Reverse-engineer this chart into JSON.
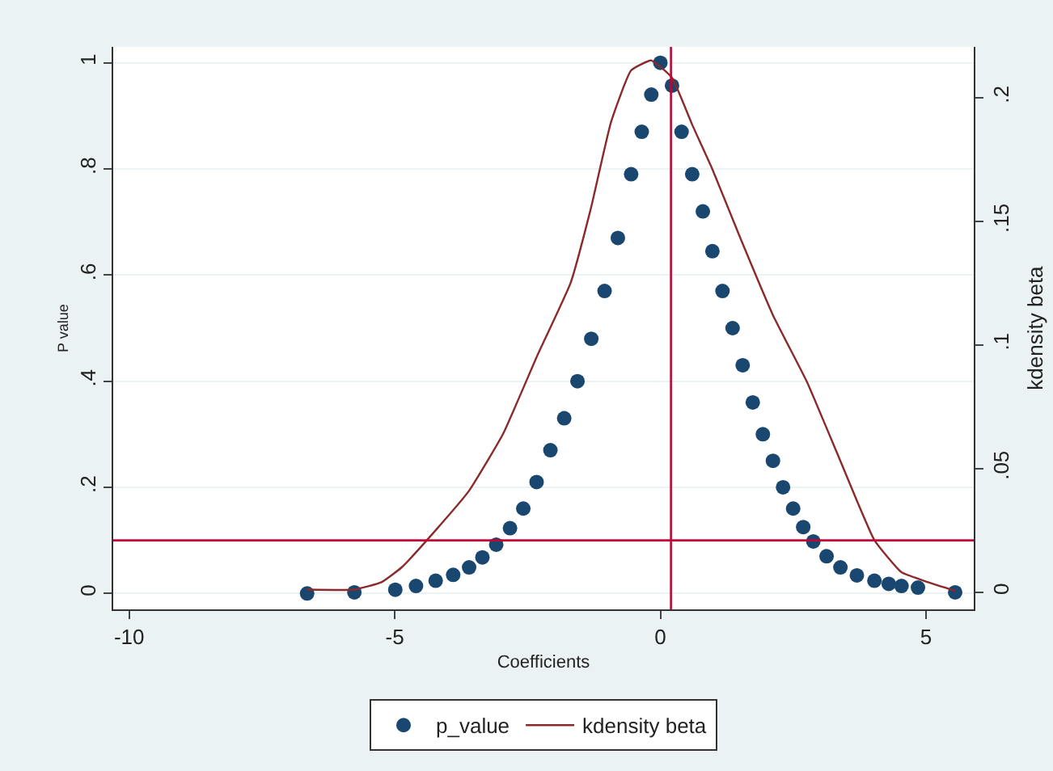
{
  "chart_data": {
    "type": "scatter",
    "xlabel": "Coefficients",
    "ylabel": "P value",
    "y2label": "kdensity beta",
    "xlim": [
      -10.3,
      5.9
    ],
    "xticks": [
      -10,
      -5,
      0,
      5
    ],
    "ylim": [
      -0.03,
      1.03
    ],
    "yticks": [
      0,
      {
        "value": 0.2,
        "label": ".2"
      },
      {
        "value": 0.4,
        "label": ".4"
      },
      {
        "value": 0.6,
        "label": ".6"
      },
      {
        "value": 0.8,
        "label": ".8"
      },
      1
    ],
    "y2lim": [
      -0.007,
      0.2205
    ],
    "y2ticks": [
      0,
      {
        "value": 0.05,
        "label": ".05"
      },
      {
        "value": 0.1,
        "label": ".1"
      },
      {
        "value": 0.15,
        "label": ".15"
      },
      {
        "value": 0.2,
        "label": ".2"
      }
    ],
    "series": [
      {
        "name": "p_value",
        "color": "#1a476f",
        "marker": "circle",
        "x": [
          -6.65,
          -5.76,
          -4.99,
          -4.6,
          -4.23,
          -3.9,
          -3.6,
          -3.35,
          -3.09,
          -2.83,
          -2.58,
          -2.33,
          -2.07,
          -1.81,
          -1.56,
          -1.3,
          -1.05,
          -0.8,
          -0.55,
          -0.35,
          -0.17,
          0,
          0.22,
          0.4,
          0.6,
          0.8,
          0.98,
          1.17,
          1.36,
          1.55,
          1.74,
          1.93,
          2.12,
          2.31,
          2.5,
          2.69,
          2.88,
          3.13,
          3.39,
          3.7,
          4.03,
          4.3,
          4.54,
          4.85,
          5.55
        ],
        "values": [
          0,
          0.002,
          0.007,
          0.014,
          0.024,
          0.035,
          0.049,
          0.068,
          0.092,
          0.123,
          0.16,
          0.21,
          0.27,
          0.33,
          0.4,
          0.48,
          0.57,
          0.67,
          0.79,
          0.87,
          0.94,
          1,
          0.957,
          0.87,
          0.79,
          0.72,
          0.645,
          0.57,
          0.5,
          0.43,
          0.36,
          0.3,
          0.25,
          0.2,
          0.16,
          0.125,
          0.098,
          0.07,
          0.049,
          0.034,
          0.024,
          0.018,
          0.014,
          0.011,
          0.002
        ]
      },
      {
        "name": "kdensity beta",
        "type": "line",
        "axis": "y2",
        "color": "#8b2a2a",
        "line_style": "solid",
        "x": [
          -6.65,
          -5.76,
          -5.25,
          -4.87,
          -4.23,
          -3.6,
          -2.96,
          -2.33,
          -1.69,
          -1.31,
          -0.93,
          -0.55,
          -0.17,
          0.22,
          0.6,
          0.98,
          1.49,
          2.12,
          2.76,
          3.39,
          4.03,
          4.54,
          5.04,
          5.55
        ],
        "values": [
          0.001,
          0.001,
          0.004,
          0.01,
          0.025,
          0.041,
          0.064,
          0.095,
          0.125,
          0.155,
          0.19,
          0.211,
          0.215,
          0.208,
          0.189,
          0.171,
          0.144,
          0.112,
          0.085,
          0.053,
          0.021,
          0.008,
          0.004,
          0.0005
        ]
      }
    ],
    "ref_lines": [
      {
        "axis": "x",
        "value": 0.2,
        "color": "#c10534"
      },
      {
        "axis": "y",
        "value": 0.1,
        "color": "#c10534"
      }
    ],
    "grid": "y",
    "legend": "bottom"
  }
}
